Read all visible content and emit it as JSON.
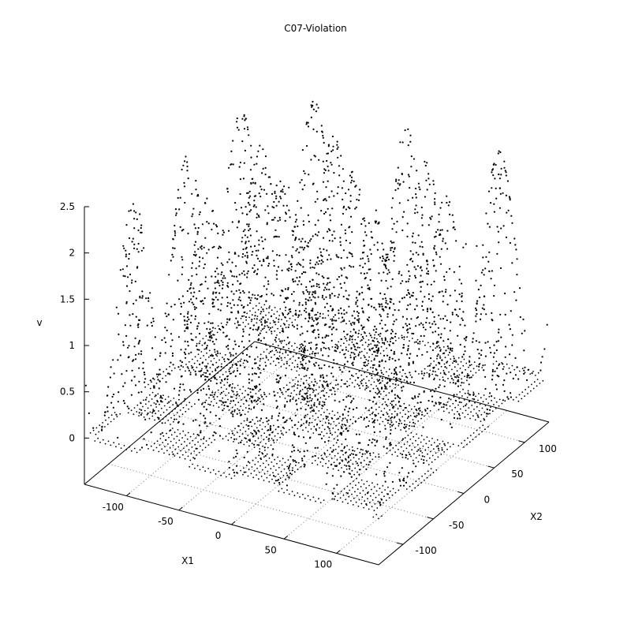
{
  "chart_data": {
    "type": "scatter",
    "title": "C07-Violation",
    "xlabel": "X1",
    "ylabel": "X2",
    "zlabel": "v",
    "x_ticks": [
      -100,
      -50,
      0,
      50,
      100
    ],
    "y_ticks": [
      -100,
      -50,
      0,
      50,
      100
    ],
    "z_ticks": [
      0,
      0.5,
      1,
      1.5,
      2,
      2.5
    ],
    "xlim": [
      -140,
      140
    ],
    "ylim": [
      -140,
      140
    ],
    "zlim": [
      -0.5,
      2.5
    ],
    "grid": "xy-floor",
    "legend": "none",
    "point_color": "#000000",
    "series": [
      {
        "surface": "v = max(0, 2.5*sin(X1/14)*sin(X2/14))",
        "lattice_step": 5,
        "x_range": [
          -140,
          140
        ],
        "y_range": [
          -140,
          140
        ],
        "zero_region_marker": "dense-plateau",
        "positive_region_marker": "sparse-samples"
      }
    ]
  }
}
